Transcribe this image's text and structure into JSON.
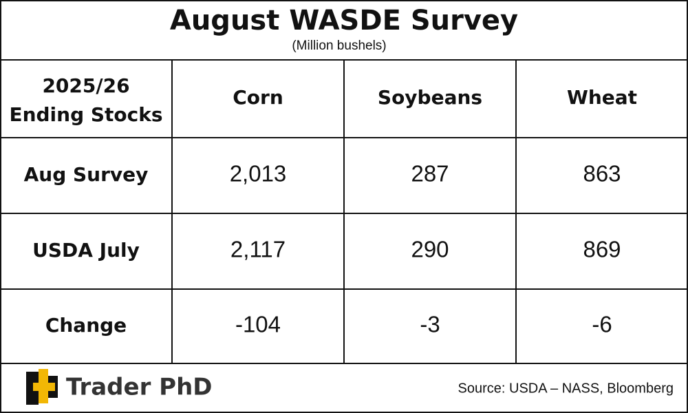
{
  "header": {
    "title": "August WASDE Survey",
    "subtitle": "(Million bushels)"
  },
  "table": {
    "corner": [
      "2025/26",
      "Ending Stocks"
    ],
    "columns": [
      "Corn",
      "Soybeans",
      "Wheat"
    ],
    "rows": [
      {
        "label": "Aug Survey",
        "values": [
          "2,013",
          "287",
          "863"
        ]
      },
      {
        "label": "USDA July",
        "values": [
          "2,117",
          "290",
          "869"
        ]
      },
      {
        "label": "Change",
        "values": [
          "-104",
          "-3",
          "-6"
        ]
      }
    ]
  },
  "footer": {
    "brand": "Trader PhD",
    "source": "Source: USDA – NASS, Bloomberg"
  }
}
